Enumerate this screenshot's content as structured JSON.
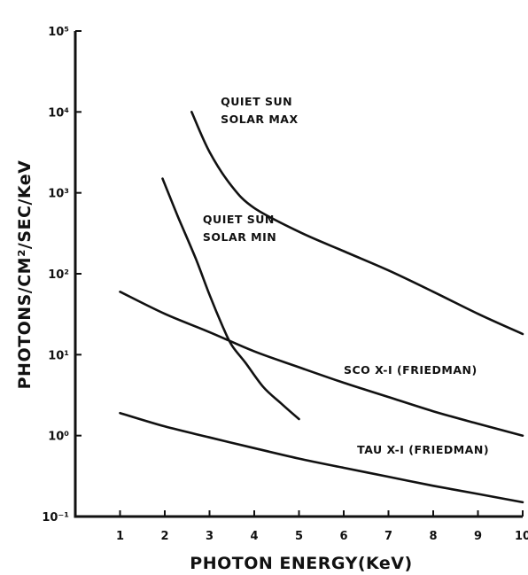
{
  "chart_data": {
    "type": "line",
    "xlabel": "PHOTON ENERGY(KeV)",
    "ylabel": "PHOTONS/CM²/SEC/KeV",
    "xlim": [
      0,
      10
    ],
    "ylim": [
      0.1,
      100000
    ],
    "yscale": "log",
    "grid": false,
    "x_ticks": [
      "1",
      "2",
      "3",
      "4",
      "5",
      "6",
      "7",
      "8",
      "9",
      "10"
    ],
    "y_ticks": [
      "10⁻¹",
      "10⁰",
      "10¹",
      "10²",
      "10³",
      "10⁴",
      "10⁵"
    ],
    "series": [
      {
        "name": "QUIET SUN SOLAR MAX",
        "label_lines": [
          "QUIET SUN",
          "SOLAR MAX"
        ],
        "x": [
          2.6,
          3.0,
          3.5,
          4.0,
          5.0,
          6.0,
          7.0,
          8.0,
          9.0,
          10.0
        ],
        "y": [
          10000,
          3200,
          1200,
          650,
          330,
          190,
          110,
          60,
          32,
          18
        ]
      },
      {
        "name": "QUIET SUN SOLAR MIN",
        "label_lines": [
          "QUIET SUN",
          "SOLAR MIN"
        ],
        "x": [
          1.95,
          2.3,
          2.7,
          3.0,
          3.3,
          3.5,
          3.8,
          4.2,
          4.6,
          5.0
        ],
        "y": [
          1500,
          500,
          150,
          55,
          22,
          13,
          8,
          4,
          2.5,
          1.6
        ]
      },
      {
        "name": "SCO X-I (FRIEDMAN)",
        "label_lines": [
          "SCO X-I (FRIEDMAN)"
        ],
        "x": [
          1,
          2,
          3,
          4,
          5,
          6,
          7,
          8,
          9,
          10
        ],
        "y": [
          60,
          32,
          19,
          11,
          7,
          4.5,
          3,
          2,
          1.4,
          1.0
        ]
      },
      {
        "name": "TAU X-I (FRIEDMAN)",
        "label_lines": [
          "TAU X-I (FRIEDMAN)"
        ],
        "x": [
          1,
          2,
          3,
          4,
          5,
          6,
          7,
          8,
          9,
          10
        ],
        "y": [
          1.9,
          1.3,
          0.95,
          0.7,
          0.52,
          0.4,
          0.31,
          0.24,
          0.19,
          0.15
        ]
      }
    ]
  }
}
